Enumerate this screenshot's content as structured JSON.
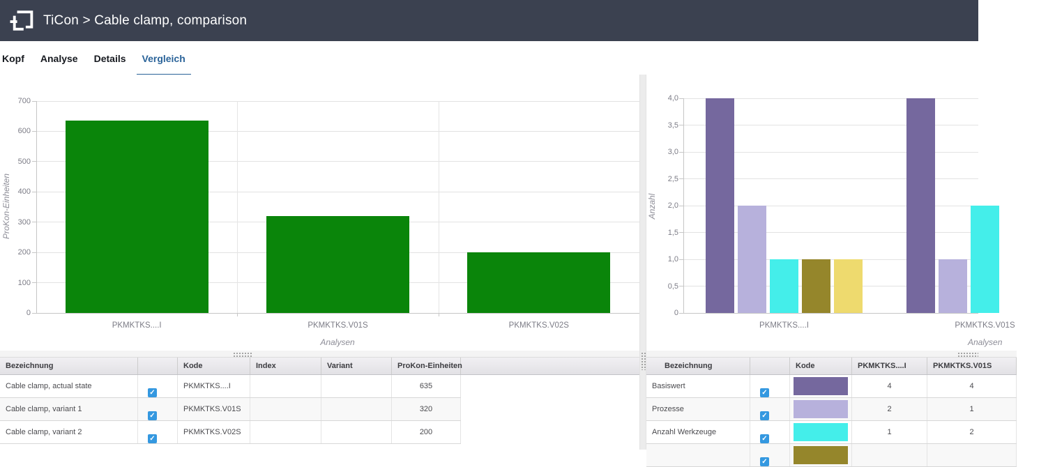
{
  "header": {
    "title": "TiCon > Cable clamp, comparison",
    "bg_color": "#3b4150"
  },
  "tabs": {
    "items": [
      {
        "label": "Kopf",
        "active": false
      },
      {
        "label": "Analyse",
        "active": false
      },
      {
        "label": "Details",
        "active": false
      },
      {
        "label": "Vergleich",
        "active": true
      }
    ],
    "active_color": "#2a6399"
  },
  "chart_data": [
    {
      "type": "bar",
      "title": "",
      "categories": [
        "PKMKTKS....I",
        "PKMKTKS.V01S",
        "PKMKTKS.V02S"
      ],
      "values": [
        635,
        320,
        200
      ],
      "bar_color": "#0a850a",
      "xlabel": "Analysen",
      "ylabel": "ProKon-Einheiten",
      "ylim": [
        0,
        700
      ],
      "ytick_values": [
        0,
        100,
        200,
        300,
        400,
        500,
        600,
        700
      ],
      "ytick_labels": [
        "0",
        "100",
        "200",
        "300",
        "400",
        "500",
        "600",
        "700"
      ],
      "grid": true,
      "legend": "none"
    },
    {
      "type": "bar",
      "title": "",
      "categories": [
        "PKMKTKS....I",
        "PKMKTKS.V01S"
      ],
      "series": [
        {
          "name": "Basiswert",
          "color": "#75689e",
          "values": [
            4,
            4
          ]
        },
        {
          "name": "Prozesse",
          "color": "#b7b1dc",
          "values": [
            2,
            1
          ]
        },
        {
          "name": "Anzahl Werkzeuge",
          "color": "#44eeea",
          "values": [
            1,
            2
          ]
        },
        {
          "name": "",
          "color": "#95862b",
          "values": [
            1,
            null
          ]
        },
        {
          "name": "",
          "color": "#eeda6e",
          "values": [
            1,
            null
          ]
        }
      ],
      "xlabel": "Analysen",
      "ylabel": "Anzahl",
      "ylim": [
        0,
        4
      ],
      "ytick_values": [
        0,
        0.5,
        1,
        1.5,
        2,
        2.5,
        3,
        3.5,
        4
      ],
      "ytick_labels": [
        "0",
        "0,5",
        "1,0",
        "1,5",
        "2,0",
        "2,5",
        "3,0",
        "3,5",
        "4,0"
      ],
      "grid": true,
      "legend": "none"
    }
  ],
  "left_table": {
    "columns": [
      "Bezeichnung",
      "",
      "Kode",
      "Index",
      "Variant",
      "ProKon-Einheiten"
    ],
    "rows": [
      {
        "bezeichnung": "Cable clamp, actual state",
        "checked": true,
        "kode": "PKMKTKS....I",
        "index": "",
        "variant": "",
        "prokon": "635"
      },
      {
        "bezeichnung": "Cable clamp, variant 1",
        "checked": true,
        "kode": "PKMKTKS.V01S",
        "index": "",
        "variant": "",
        "prokon": "320"
      },
      {
        "bezeichnung": "Cable clamp, variant 2",
        "checked": true,
        "kode": "PKMKTKS.V02S",
        "index": "",
        "variant": "",
        "prokon": "200"
      }
    ]
  },
  "right_table": {
    "columns": [
      "Bezeichnung",
      "",
      "Kode",
      "PKMKTKS....I",
      "PKMKTKS.V01S"
    ],
    "rows": [
      {
        "bezeichnung": "Basiswert",
        "checked": true,
        "color": "#75689e",
        "v1": "4",
        "v2": "4"
      },
      {
        "bezeichnung": "Prozesse",
        "checked": true,
        "color": "#b7b1dc",
        "v1": "2",
        "v2": "1"
      },
      {
        "bezeichnung": "Anzahl Werkzeuge",
        "checked": true,
        "color": "#44eeea",
        "v1": "1",
        "v2": "2"
      },
      {
        "bezeichnung": "",
        "checked": true,
        "color": "#95862b",
        "v1": "",
        "v2": ""
      }
    ]
  }
}
